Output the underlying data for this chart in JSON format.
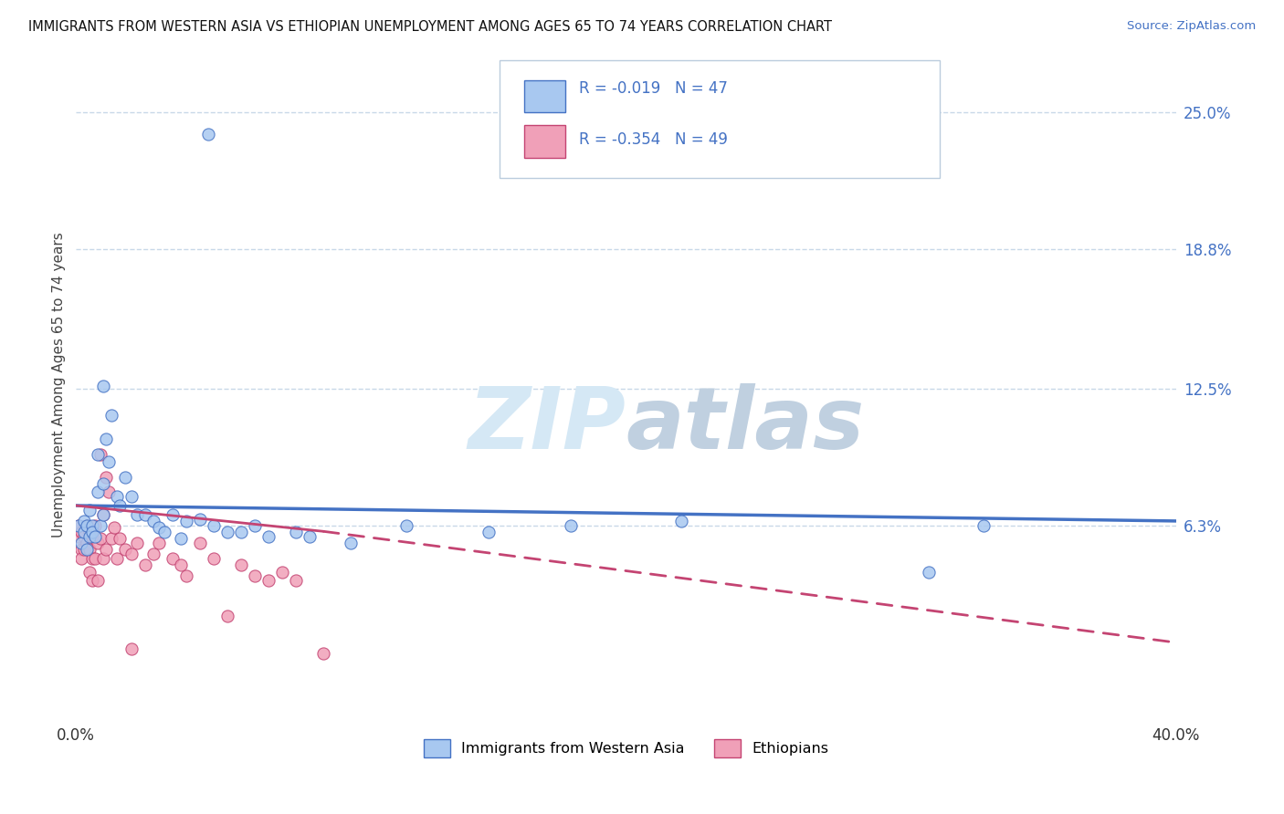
{
  "title": "IMMIGRANTS FROM WESTERN ASIA VS ETHIOPIAN UNEMPLOYMENT AMONG AGES 65 TO 74 YEARS CORRELATION CHART",
  "source": "Source: ZipAtlas.com",
  "ylabel": "Unemployment Among Ages 65 to 74 years",
  "y_tick_labels": [
    "6.3%",
    "12.5%",
    "18.8%",
    "25.0%"
  ],
  "y_tick_values": [
    0.063,
    0.125,
    0.188,
    0.25
  ],
  "xlim": [
    0.0,
    0.4
  ],
  "ylim": [
    -0.025,
    0.278
  ],
  "legend_r1": "-0.019",
  "legend_n1": "47",
  "legend_r2": "-0.354",
  "legend_n2": "49",
  "color_blue": "#A8C8F0",
  "color_pink": "#F0A0B8",
  "color_blue_text": "#4472C4",
  "color_pink_text": "#C44472",
  "trend_blue_start": 0.072,
  "trend_blue_end": 0.065,
  "trend_pink_start": 0.072,
  "trend_pink_solid_end_x": 0.09,
  "trend_pink_end": 0.02,
  "trend_pink_dashed_end": 0.01,
  "watermark_color1": "#D5E8F5",
  "watermark_color2": "#C0D0E0",
  "background_color": "#FFFFFF",
  "grid_color": "#C8D8E8",
  "scatter_blue": [
    [
      0.001,
      0.063
    ],
    [
      0.002,
      0.055
    ],
    [
      0.003,
      0.06
    ],
    [
      0.003,
      0.065
    ],
    [
      0.004,
      0.063
    ],
    [
      0.004,
      0.052
    ],
    [
      0.005,
      0.07
    ],
    [
      0.005,
      0.058
    ],
    [
      0.006,
      0.063
    ],
    [
      0.006,
      0.06
    ],
    [
      0.007,
      0.058
    ],
    [
      0.008,
      0.078
    ],
    [
      0.008,
      0.095
    ],
    [
      0.009,
      0.063
    ],
    [
      0.01,
      0.068
    ],
    [
      0.01,
      0.082
    ],
    [
      0.01,
      0.126
    ],
    [
      0.011,
      0.102
    ],
    [
      0.012,
      0.092
    ],
    [
      0.013,
      0.113
    ],
    [
      0.015,
      0.076
    ],
    [
      0.016,
      0.072
    ],
    [
      0.018,
      0.085
    ],
    [
      0.02,
      0.076
    ],
    [
      0.022,
      0.068
    ],
    [
      0.025,
      0.068
    ],
    [
      0.028,
      0.065
    ],
    [
      0.03,
      0.062
    ],
    [
      0.032,
      0.06
    ],
    [
      0.035,
      0.068
    ],
    [
      0.038,
      0.057
    ],
    [
      0.04,
      0.065
    ],
    [
      0.045,
      0.066
    ],
    [
      0.05,
      0.063
    ],
    [
      0.055,
      0.06
    ],
    [
      0.06,
      0.06
    ],
    [
      0.065,
      0.063
    ],
    [
      0.07,
      0.058
    ],
    [
      0.08,
      0.06
    ],
    [
      0.085,
      0.058
    ],
    [
      0.1,
      0.055
    ],
    [
      0.12,
      0.063
    ],
    [
      0.15,
      0.06
    ],
    [
      0.18,
      0.063
    ],
    [
      0.22,
      0.065
    ],
    [
      0.31,
      0.042
    ],
    [
      0.33,
      0.063
    ]
  ],
  "scatter_pink": [
    [
      0.001,
      0.063
    ],
    [
      0.001,
      0.058
    ],
    [
      0.002,
      0.052
    ],
    [
      0.002,
      0.06
    ],
    [
      0.002,
      0.048
    ],
    [
      0.003,
      0.058
    ],
    [
      0.003,
      0.052
    ],
    [
      0.004,
      0.063
    ],
    [
      0.004,
      0.055
    ],
    [
      0.005,
      0.06
    ],
    [
      0.005,
      0.052
    ],
    [
      0.005,
      0.042
    ],
    [
      0.006,
      0.058
    ],
    [
      0.006,
      0.048
    ],
    [
      0.006,
      0.038
    ],
    [
      0.007,
      0.063
    ],
    [
      0.007,
      0.048
    ],
    [
      0.008,
      0.055
    ],
    [
      0.008,
      0.038
    ],
    [
      0.009,
      0.095
    ],
    [
      0.009,
      0.057
    ],
    [
      0.01,
      0.068
    ],
    [
      0.01,
      0.048
    ],
    [
      0.011,
      0.085
    ],
    [
      0.011,
      0.052
    ],
    [
      0.012,
      0.078
    ],
    [
      0.013,
      0.057
    ],
    [
      0.014,
      0.062
    ],
    [
      0.015,
      0.048
    ],
    [
      0.016,
      0.057
    ],
    [
      0.018,
      0.052
    ],
    [
      0.02,
      0.05
    ],
    [
      0.022,
      0.055
    ],
    [
      0.025,
      0.045
    ],
    [
      0.028,
      0.05
    ],
    [
      0.03,
      0.055
    ],
    [
      0.035,
      0.048
    ],
    [
      0.038,
      0.045
    ],
    [
      0.04,
      0.04
    ],
    [
      0.045,
      0.055
    ],
    [
      0.05,
      0.048
    ],
    [
      0.055,
      0.022
    ],
    [
      0.06,
      0.045
    ],
    [
      0.065,
      0.04
    ],
    [
      0.07,
      0.038
    ],
    [
      0.075,
      0.042
    ],
    [
      0.08,
      0.038
    ],
    [
      0.09,
      0.005
    ],
    [
      0.02,
      0.007
    ]
  ],
  "blue_outlier": [
    0.048,
    0.24
  ]
}
